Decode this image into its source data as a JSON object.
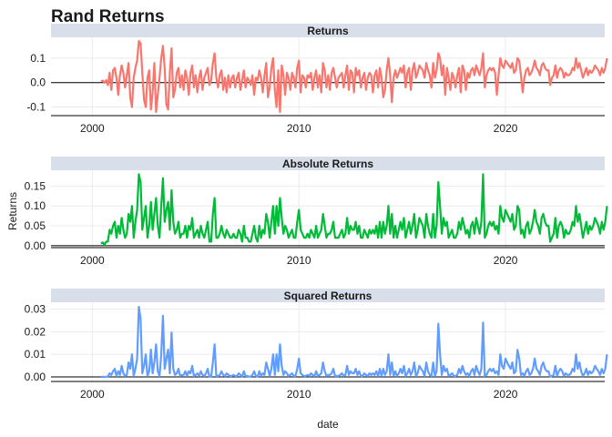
{
  "chart_data": {
    "type": "line",
    "title": "Rand Returns",
    "xlabel": "date",
    "ylabel": "Returns",
    "xlim": [
      1998.0,
      2024.8
    ],
    "x_ticks": [
      2000,
      2010,
      2020
    ],
    "x_tick_labels": [
      "2000",
      "2010",
      "2020"
    ],
    "grid": true,
    "legend": "none",
    "reference_line_y": 0,
    "x_start": 2000.42,
    "x_step": 0.0833,
    "facets": [
      {
        "key": "returns",
        "label": "Returns",
        "color": "#F8766D",
        "ylim": [
          -0.135,
          0.185
        ],
        "y_ticks": [
          -0.1,
          0.0,
          0.1
        ],
        "y_tick_labels": [
          "-0.1",
          "0.0",
          "0.1"
        ],
        "values": [
          0.005,
          0.008,
          0.0,
          0.01,
          -0.01,
          0.04,
          -0.03,
          0.05,
          0.06,
          0.02,
          -0.05,
          0.03,
          0.07,
          0.04,
          -0.02,
          0.03,
          0.08,
          -0.06,
          -0.1,
          0.02,
          0.06,
          0.09,
          0.17,
          0.16,
          0.04,
          -0.07,
          -0.1,
          0.02,
          0.05,
          -0.11,
          -0.04,
          0.08,
          -0.12,
          -0.05,
          0.02,
          0.1,
          0.15,
          0.06,
          -0.09,
          -0.11,
          0.04,
          0.14,
          -0.06,
          -0.03,
          0.04,
          0.06,
          -0.02,
          0.03,
          -0.03,
          0.05,
          0.02,
          -0.05,
          0.04,
          0.07,
          -0.02,
          0.03,
          -0.04,
          0.02,
          0.05,
          -0.03,
          0.02,
          0.04,
          0.06,
          -0.01,
          0.01,
          0.08,
          0.12,
          0.02,
          -0.02,
          0.03,
          0.05,
          -0.03,
          0.02,
          -0.04,
          0.03,
          -0.02,
          0.02,
          0.03,
          -0.02,
          0.02,
          0.04,
          -0.03,
          0.01,
          0.05,
          -0.02,
          0.02,
          0.01,
          -0.01,
          0.03,
          -0.05,
          0.02,
          0.01,
          0.05,
          0.02,
          -0.04,
          0.03,
          0.08,
          -0.06,
          -0.02,
          0.06,
          0.1,
          -0.03,
          -0.1,
          0.05,
          -0.12,
          0.07,
          0.03,
          -0.05,
          0.04,
          0.02,
          -0.03,
          0.04,
          0.02,
          -0.02,
          0.06,
          0.09,
          -0.04,
          0.03,
          0.02,
          -0.02,
          0.03,
          0.02,
          0.04,
          -0.03,
          0.02,
          0.05,
          -0.02,
          0.03,
          -0.04,
          0.08,
          0.05,
          -0.02,
          0.03,
          -0.03,
          0.04,
          0.06,
          0.02,
          -0.02,
          0.02,
          0.03,
          0.04,
          -0.02,
          0.03,
          0.07,
          -0.03,
          0.05,
          0.04,
          -0.04,
          0.06,
          0.03,
          0.05,
          -0.02,
          0.02,
          0.04,
          -0.03,
          0.02,
          0.04,
          0.03,
          -0.04,
          0.03,
          0.05,
          -0.02,
          0.06,
          0.02,
          -0.06,
          -0.03,
          0.05,
          0.1,
          0.03,
          -0.08,
          0.02,
          0.05,
          0.02,
          0.04,
          0.06,
          0.04,
          0.07,
          -0.02,
          0.04,
          0.06,
          -0.03,
          0.05,
          0.08,
          0.02,
          0.04,
          0.07,
          0.06,
          0.05,
          0.02,
          0.08,
          0.05,
          0.03,
          -0.02,
          0.08,
          0.02,
          0.05,
          0.12,
          0.1,
          0.03,
          0.07,
          -0.05,
          0.06,
          0.02,
          -0.03,
          0.04,
          0.02,
          -0.02,
          0.03,
          0.06,
          -0.04,
          0.07,
          0.05,
          -0.03,
          0.04,
          0.02,
          0.05,
          0.06,
          0.03,
          0.07,
          0.05,
          0.03,
          0.06,
          0.12,
          -0.02,
          0.03,
          0.05,
          0.06,
          0.05,
          0.06,
          0.04,
          -0.05,
          0.03,
          0.1,
          0.07,
          0.06,
          0.09,
          0.08,
          0.07,
          0.06,
          0.08,
          0.04,
          0.05,
          0.1,
          0.09,
          0.03,
          -0.04,
          0.02,
          0.05,
          0.06,
          0.03,
          0.04,
          0.06,
          0.09,
          0.06,
          0.05,
          0.03,
          0.07,
          0.08,
          0.06,
          0.05,
          0.05,
          -0.01,
          0.02,
          0.03,
          0.07,
          0.02,
          0.05,
          0.06,
          0.05,
          0.02,
          0.04,
          0.03,
          0.03,
          0.04,
          0.06,
          0.05,
          0.1,
          0.06,
          0.08,
          0.05,
          0.02,
          0.04,
          0.06,
          0.03,
          0.05,
          0.04,
          0.05,
          0.07,
          0.06,
          0.05,
          0.03,
          0.06,
          0.04,
          0.06,
          0.1
        ]
      },
      {
        "key": "abs",
        "label": "Absolute Returns",
        "color": "#00BA38",
        "ylim": [
          -0.005,
          0.19
        ],
        "y_ticks": [
          0.0,
          0.05,
          0.1,
          0.15
        ],
        "y_tick_labels": [
          "0.00",
          "0.05",
          "0.10",
          "0.15"
        ],
        "values": [
          0.005,
          0.008,
          0.002,
          0.01,
          0.01,
          0.04,
          0.03,
          0.05,
          0.06,
          0.02,
          0.05,
          0.03,
          0.07,
          0.04,
          0.02,
          0.03,
          0.08,
          0.06,
          0.1,
          0.02,
          0.06,
          0.09,
          0.18,
          0.16,
          0.04,
          0.07,
          0.1,
          0.02,
          0.05,
          0.11,
          0.04,
          0.08,
          0.12,
          0.05,
          0.02,
          0.1,
          0.17,
          0.06,
          0.09,
          0.11,
          0.04,
          0.14,
          0.06,
          0.03,
          0.04,
          0.06,
          0.02,
          0.03,
          0.03,
          0.05,
          0.02,
          0.05,
          0.04,
          0.07,
          0.02,
          0.03,
          0.04,
          0.02,
          0.05,
          0.03,
          0.02,
          0.04,
          0.06,
          0.01,
          0.01,
          0.08,
          0.12,
          0.02,
          0.02,
          0.03,
          0.05,
          0.03,
          0.02,
          0.04,
          0.03,
          0.02,
          0.02,
          0.03,
          0.02,
          0.02,
          0.04,
          0.03,
          0.01,
          0.05,
          0.02,
          0.02,
          0.01,
          0.01,
          0.03,
          0.05,
          0.02,
          0.01,
          0.05,
          0.02,
          0.04,
          0.03,
          0.08,
          0.06,
          0.02,
          0.06,
          0.1,
          0.03,
          0.1,
          0.05,
          0.12,
          0.07,
          0.03,
          0.05,
          0.04,
          0.02,
          0.03,
          0.04,
          0.02,
          0.02,
          0.06,
          0.09,
          0.04,
          0.03,
          0.02,
          0.02,
          0.03,
          0.02,
          0.04,
          0.03,
          0.02,
          0.05,
          0.02,
          0.03,
          0.04,
          0.08,
          0.05,
          0.02,
          0.03,
          0.03,
          0.04,
          0.06,
          0.02,
          0.02,
          0.02,
          0.03,
          0.04,
          0.02,
          0.03,
          0.07,
          0.03,
          0.05,
          0.04,
          0.04,
          0.06,
          0.03,
          0.05,
          0.02,
          0.02,
          0.04,
          0.03,
          0.02,
          0.04,
          0.03,
          0.04,
          0.03,
          0.05,
          0.02,
          0.06,
          0.02,
          0.06,
          0.03,
          0.05,
          0.1,
          0.03,
          0.08,
          0.02,
          0.05,
          0.02,
          0.04,
          0.06,
          0.04,
          0.07,
          0.02,
          0.04,
          0.06,
          0.03,
          0.05,
          0.08,
          0.02,
          0.04,
          0.07,
          0.06,
          0.05,
          0.02,
          0.08,
          0.05,
          0.03,
          0.02,
          0.08,
          0.02,
          0.05,
          0.16,
          0.1,
          0.03,
          0.07,
          0.05,
          0.06,
          0.02,
          0.03,
          0.04,
          0.02,
          0.02,
          0.03,
          0.06,
          0.04,
          0.07,
          0.05,
          0.03,
          0.04,
          0.02,
          0.05,
          0.06,
          0.03,
          0.07,
          0.05,
          0.03,
          0.06,
          0.18,
          0.02,
          0.03,
          0.05,
          0.06,
          0.05,
          0.06,
          0.04,
          0.05,
          0.03,
          0.1,
          0.07,
          0.06,
          0.09,
          0.08,
          0.07,
          0.06,
          0.08,
          0.04,
          0.05,
          0.1,
          0.09,
          0.03,
          0.04,
          0.02,
          0.05,
          0.06,
          0.03,
          0.04,
          0.06,
          0.09,
          0.06,
          0.05,
          0.03,
          0.07,
          0.08,
          0.06,
          0.05,
          0.05,
          0.01,
          0.02,
          0.03,
          0.07,
          0.02,
          0.05,
          0.06,
          0.05,
          0.02,
          0.04,
          0.03,
          0.03,
          0.04,
          0.06,
          0.05,
          0.1,
          0.06,
          0.08,
          0.05,
          0.02,
          0.04,
          0.06,
          0.03,
          0.05,
          0.04,
          0.05,
          0.07,
          0.06,
          0.05,
          0.03,
          0.06,
          0.04,
          0.06,
          0.1
        ]
      },
      {
        "key": "sq",
        "label": "Squared Returns",
        "color": "#619CFF",
        "ylim": [
          -0.002,
          0.033
        ],
        "y_ticks": [
          0.0,
          0.01,
          0.02,
          0.03
        ],
        "y_tick_labels": [
          "0.00",
          "0.01",
          "0.02",
          "0.03"
        ],
        "values": [
          0.0,
          0.0001,
          0.0,
          0.0001,
          0.0001,
          0.0016,
          0.0009,
          0.0025,
          0.0036,
          0.0004,
          0.0025,
          0.0009,
          0.0049,
          0.0016,
          0.0004,
          0.0009,
          0.0064,
          0.0036,
          0.01,
          0.0004,
          0.0036,
          0.0081,
          0.031,
          0.0256,
          0.0016,
          0.0049,
          0.01,
          0.0004,
          0.0025,
          0.0121,
          0.0016,
          0.0064,
          0.0144,
          0.0025,
          0.0004,
          0.01,
          0.027,
          0.0036,
          0.0081,
          0.0121,
          0.0016,
          0.0196,
          0.0036,
          0.0009,
          0.0016,
          0.0036,
          0.0004,
          0.0009,
          0.0009,
          0.0025,
          0.0004,
          0.0025,
          0.0016,
          0.0049,
          0.0004,
          0.0009,
          0.0016,
          0.0004,
          0.0025,
          0.0009,
          0.0004,
          0.0016,
          0.0036,
          0.0001,
          0.0001,
          0.0064,
          0.0144,
          0.0004,
          0.0004,
          0.0009,
          0.0025,
          0.0009,
          0.0004,
          0.0016,
          0.0009,
          0.0004,
          0.0004,
          0.0009,
          0.0004,
          0.0004,
          0.0016,
          0.0009,
          0.0001,
          0.0025,
          0.0004,
          0.0004,
          0.0001,
          0.0001,
          0.0009,
          0.0025,
          0.0004,
          0.0001,
          0.0025,
          0.0004,
          0.0016,
          0.0009,
          0.0064,
          0.0036,
          0.0004,
          0.0036,
          0.01,
          0.0009,
          0.01,
          0.0025,
          0.0144,
          0.0049,
          0.0009,
          0.0025,
          0.0016,
          0.0004,
          0.0009,
          0.0016,
          0.0004,
          0.0004,
          0.0036,
          0.0081,
          0.0016,
          0.0009,
          0.0004,
          0.0004,
          0.0009,
          0.0004,
          0.0016,
          0.0009,
          0.0004,
          0.0025,
          0.0004,
          0.0009,
          0.0016,
          0.0064,
          0.0025,
          0.0004,
          0.0009,
          0.0009,
          0.0016,
          0.0036,
          0.0004,
          0.0004,
          0.0004,
          0.0009,
          0.0016,
          0.0004,
          0.0009,
          0.0049,
          0.0009,
          0.0025,
          0.0016,
          0.0016,
          0.0036,
          0.0009,
          0.0025,
          0.0004,
          0.0004,
          0.0016,
          0.0009,
          0.0004,
          0.0016,
          0.0009,
          0.0016,
          0.0009,
          0.0025,
          0.0004,
          0.0036,
          0.0004,
          0.0036,
          0.0009,
          0.0025,
          0.01,
          0.0009,
          0.0064,
          0.0004,
          0.0025,
          0.0004,
          0.0016,
          0.0036,
          0.0016,
          0.0049,
          0.0004,
          0.0016,
          0.0036,
          0.0009,
          0.0025,
          0.0064,
          0.0004,
          0.0016,
          0.0049,
          0.0036,
          0.0025,
          0.0004,
          0.0064,
          0.0025,
          0.0009,
          0.0004,
          0.0064,
          0.0004,
          0.0025,
          0.0235,
          0.01,
          0.0009,
          0.0049,
          0.0025,
          0.0036,
          0.0004,
          0.0009,
          0.0016,
          0.0004,
          0.0004,
          0.0009,
          0.0036,
          0.0016,
          0.0049,
          0.0025,
          0.0009,
          0.0016,
          0.0004,
          0.0025,
          0.0036,
          0.0009,
          0.0049,
          0.0025,
          0.0009,
          0.0036,
          0.024,
          0.0004,
          0.0009,
          0.0025,
          0.0036,
          0.0025,
          0.0036,
          0.0016,
          0.0025,
          0.0009,
          0.01,
          0.0049,
          0.0036,
          0.0081,
          0.0064,
          0.0049,
          0.0036,
          0.0064,
          0.0016,
          0.0025,
          0.012,
          0.0081,
          0.0009,
          0.0016,
          0.0004,
          0.0025,
          0.0036,
          0.0009,
          0.0016,
          0.0036,
          0.0081,
          0.0036,
          0.0025,
          0.0009,
          0.0049,
          0.0064,
          0.0036,
          0.0025,
          0.0025,
          0.0001,
          0.0004,
          0.0009,
          0.0049,
          0.0004,
          0.0025,
          0.0036,
          0.0025,
          0.0004,
          0.0016,
          0.0009,
          0.0009,
          0.0016,
          0.0036,
          0.0025,
          0.01,
          0.0036,
          0.0064,
          0.0025,
          0.0004,
          0.0016,
          0.0036,
          0.0009,
          0.0025,
          0.0016,
          0.0025,
          0.0049,
          0.0036,
          0.0025,
          0.0009,
          0.0036,
          0.0016,
          0.0036,
          0.01
        ]
      }
    ]
  }
}
